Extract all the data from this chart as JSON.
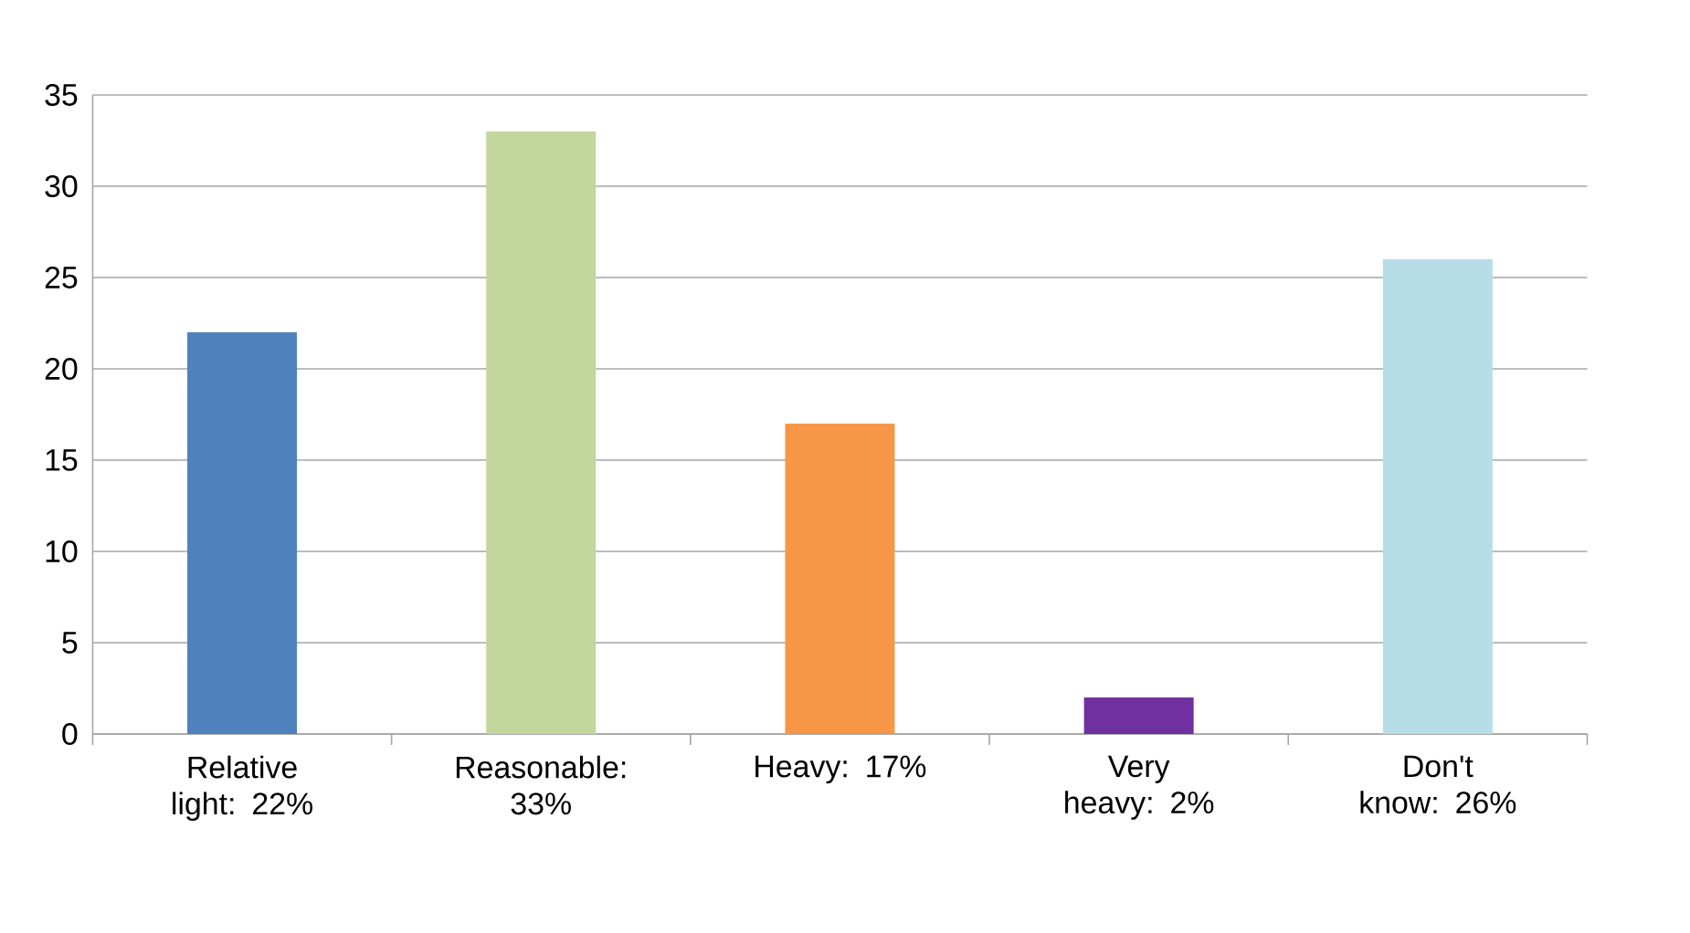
{
  "chart_data": {
    "type": "bar",
    "categories": [
      "Relative light: 22%",
      "Reasonable: 33%",
      "Heavy: 17%",
      "Very heavy: 2%",
      "Don't know: 26%"
    ],
    "values": [
      22,
      33,
      17,
      2,
      26
    ],
    "colors": [
      "#4f81bd",
      "#c3d69b",
      "#f79646",
      "#7030a0",
      "#b7dee8"
    ],
    "ylim": [
      0,
      35
    ],
    "yticks": [
      0,
      5,
      10,
      15,
      20,
      25,
      30,
      35
    ],
    "grid": "y"
  }
}
